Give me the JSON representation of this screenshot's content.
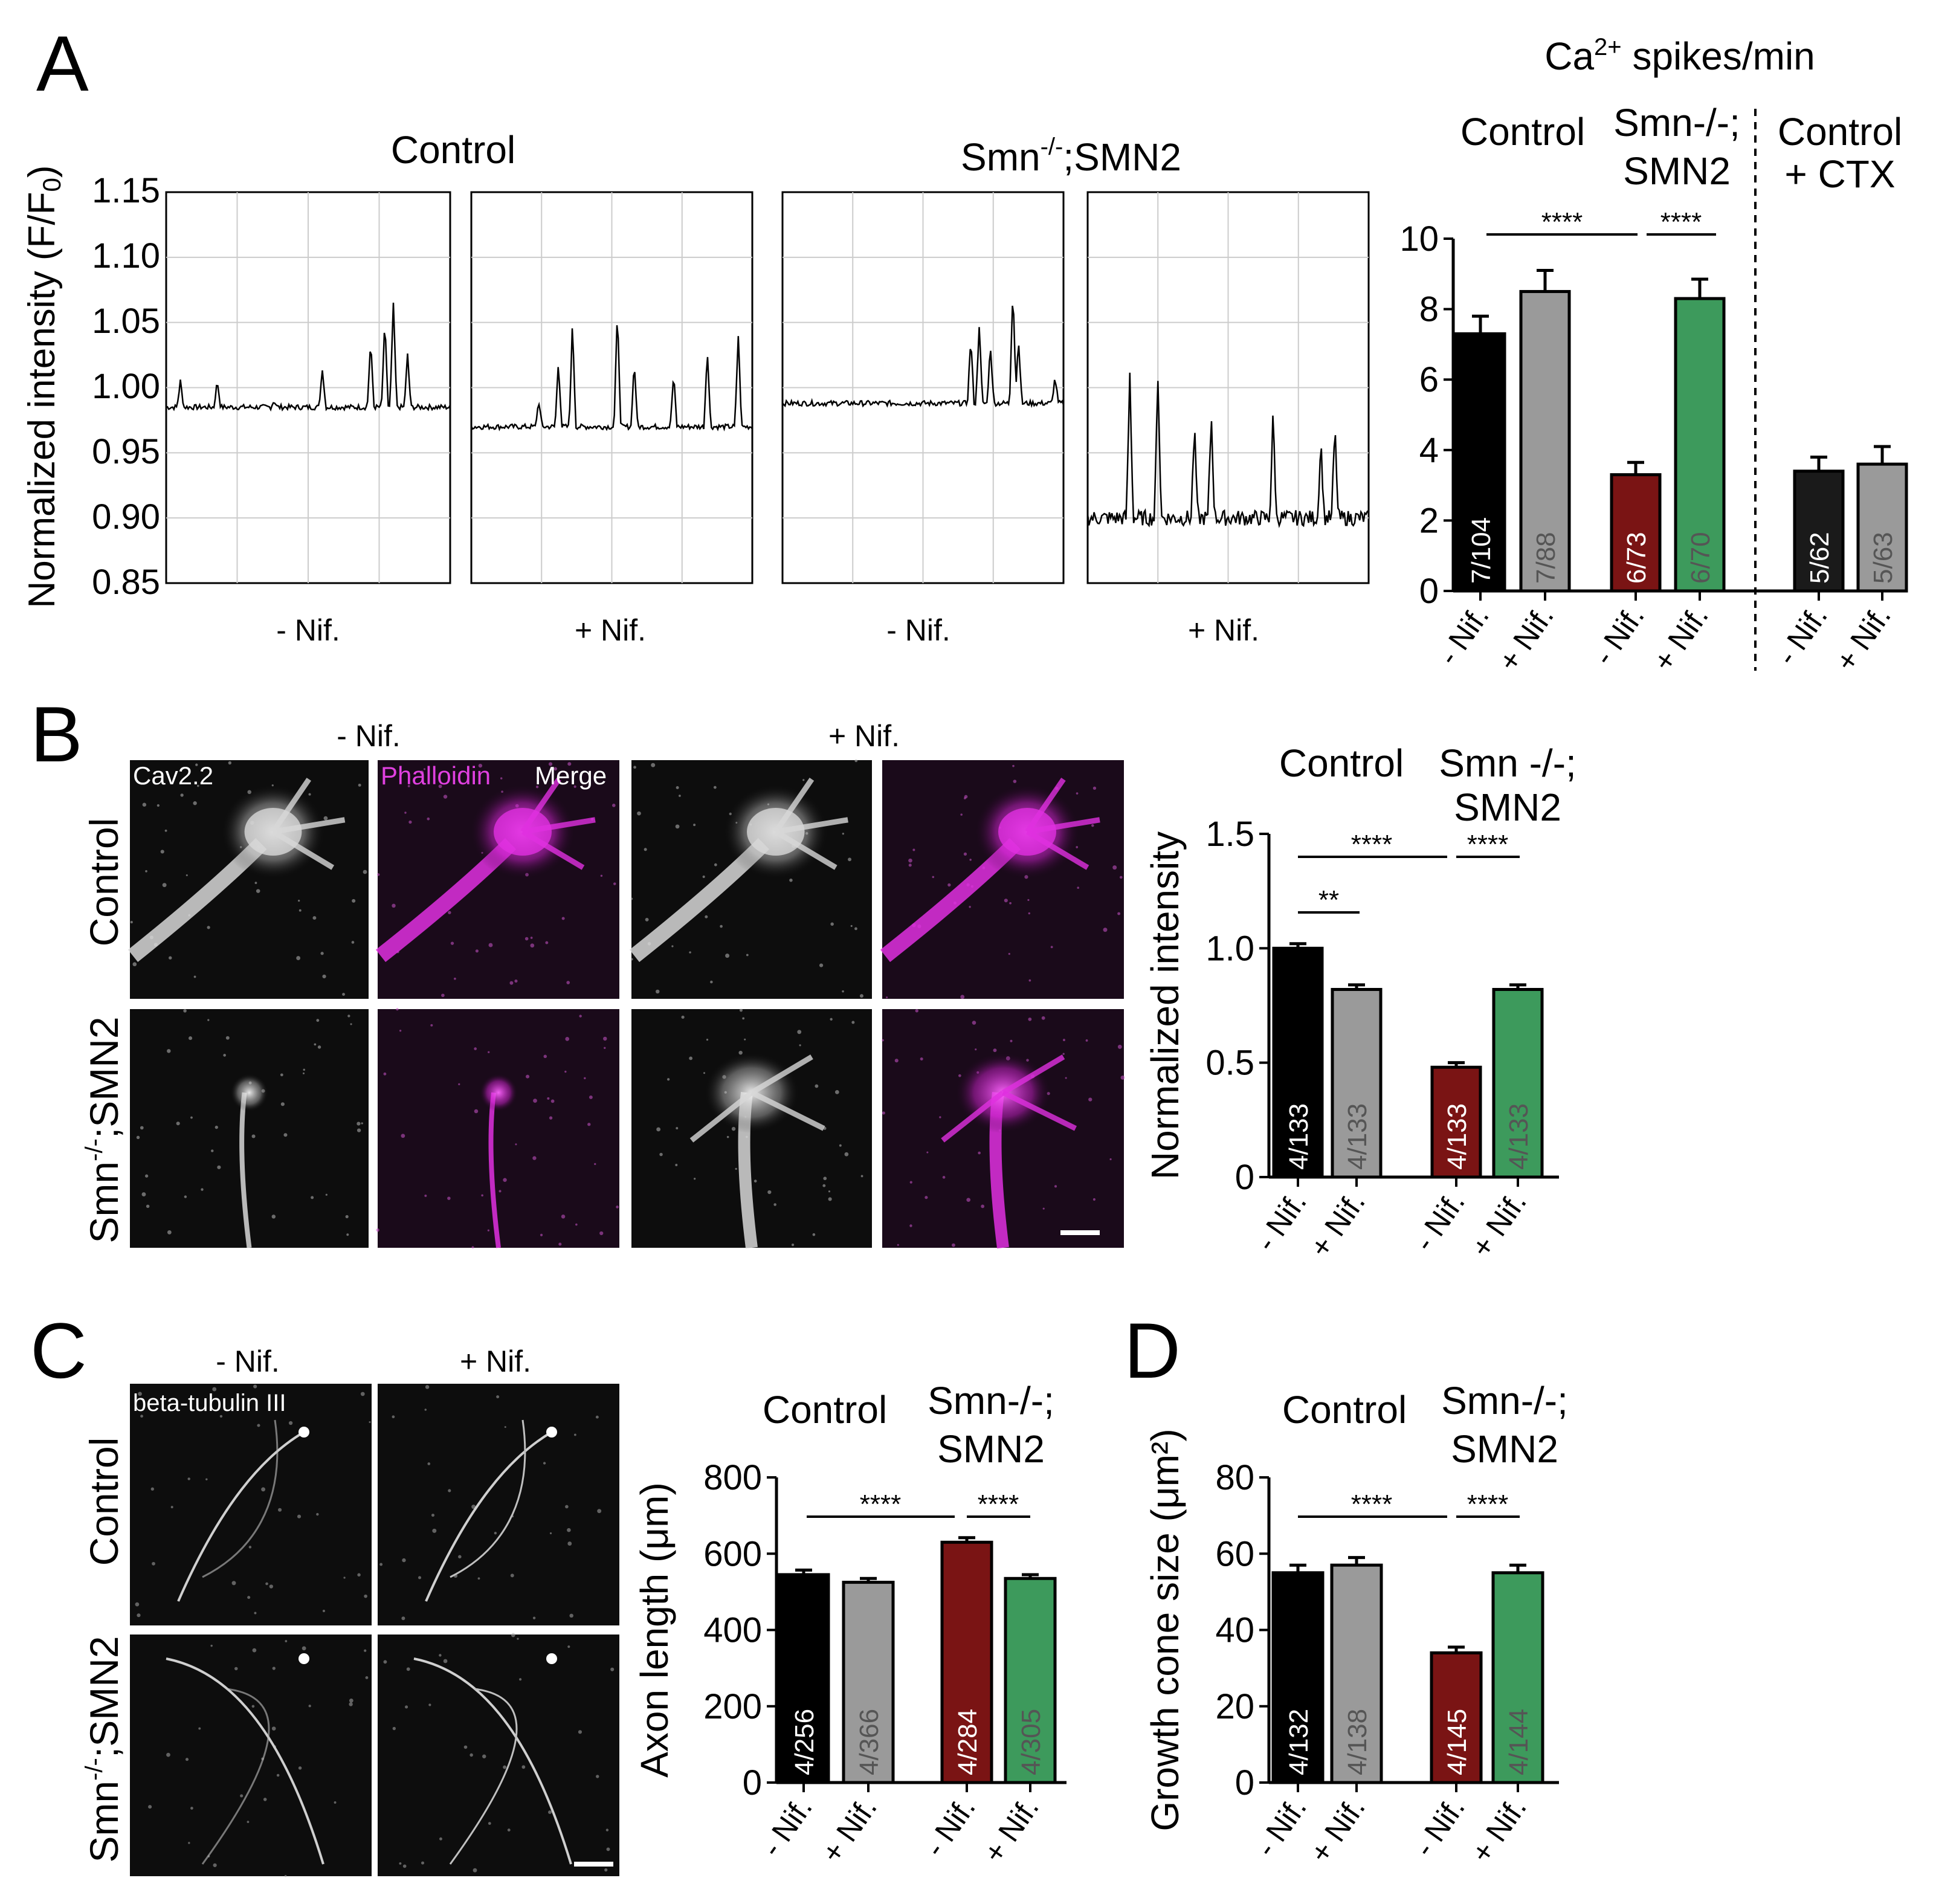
{
  "panels": {
    "A": {
      "letter": "A",
      "trace_titles": [
        "Control",
        "Smn",
        "-/-",
        ";SMN2"
      ],
      "ylabel_main": "Normalized intensity (F/F",
      "ylabel_sub": "0",
      "ylabel_close": ")",
      "yticks": [
        "1.15",
        "1.10",
        "1.05",
        "1.00",
        "0.95",
        "0.90",
        "0.85"
      ],
      "trace_xlabels": [
        "- Nif.",
        "+ Nif.",
        "- Nif.",
        "+ Nif."
      ]
    },
    "A_bar": {
      "title_main": "Ca",
      "title_sup": "2+",
      "title_rest": " spikes/min",
      "groups": [
        "Control",
        "Smn-/-;",
        "SMN2",
        "Control",
        "+ CTX"
      ],
      "sig": [
        "****",
        "****"
      ]
    },
    "B": {
      "letter": "B",
      "col_headers": [
        "- Nif.",
        "+ Nif."
      ],
      "row_labels": [
        "Control",
        "Smn",
        "-/-",
        ";SMN2"
      ],
      "channel_labels": [
        "Cav2.2",
        "Phalloidin",
        "Merge"
      ],
      "groups": [
        "Control",
        "Smn -/-;",
        "SMN2"
      ],
      "sig": [
        "**",
        "****",
        "****"
      ]
    },
    "C": {
      "letter": "C",
      "col_headers": [
        "- Nif.",
        "+ Nif."
      ],
      "row_labels": [
        "Control",
        "Smn",
        "-/-",
        ";SMN2"
      ],
      "channel_label": "beta-tubulin III",
      "groups": [
        "Control",
        "Smn-/-;",
        "SMN2"
      ],
      "sig": [
        "****",
        "****"
      ]
    },
    "D": {
      "letter": "D",
      "groups": [
        "Control",
        "Smn-/-;",
        "SMN2"
      ],
      "sig": [
        "****",
        "****"
      ]
    }
  },
  "chart_data": [
    {
      "type": "bar",
      "panel": "A",
      "title": "Ca2+ spikes/min",
      "categories": [
        "- Nif.",
        "+ Nif.",
        "- Nif.",
        "+ Nif.",
        "- Nif.",
        "+ Nif."
      ],
      "values": [
        7.3,
        8.5,
        3.3,
        8.3,
        3.4,
        3.6
      ],
      "errors": [
        0.5,
        0.6,
        0.35,
        0.55,
        0.4,
        0.5
      ],
      "bar_labels": [
        "7/104",
        "7/88",
        "6/73",
        "6/70",
        "5/62",
        "5/63"
      ],
      "colors": [
        "#000000",
        "#9a9a9a",
        "#7a1414",
        "#3d9a5c",
        "#1a1a1a",
        "#9a9a9a"
      ],
      "yticks": [
        "0",
        "2",
        "4",
        "6",
        "8",
        "10"
      ],
      "ylim": [
        0,
        10
      ],
      "xlabel": "",
      "ylabel": ""
    },
    {
      "type": "bar",
      "panel": "B",
      "categories": [
        "- Nif.",
        "+ Nif.",
        "- Nif.",
        "+ Nif."
      ],
      "values": [
        1.0,
        0.82,
        0.48,
        0.82
      ],
      "errors": [
        0.02,
        0.02,
        0.02,
        0.02
      ],
      "bar_labels": [
        "4/133",
        "4/133",
        "4/133",
        "4/133"
      ],
      "colors": [
        "#000000",
        "#9a9a9a",
        "#7a1414",
        "#3d9a5c"
      ],
      "yticks": [
        "0",
        "0.5",
        "1.0",
        "1.5"
      ],
      "ylim": [
        0,
        1.5
      ],
      "xlabel": "",
      "ylabel": "Normalized intensity"
    },
    {
      "type": "bar",
      "panel": "C",
      "categories": [
        "- Nif.",
        "+ Nif.",
        "- Nif.",
        "+ Nif."
      ],
      "values": [
        545,
        525,
        630,
        535
      ],
      "errors": [
        12,
        10,
        12,
        10
      ],
      "bar_labels": [
        "4/256",
        "4/366",
        "4/284",
        "4/305"
      ],
      "colors": [
        "#000000",
        "#9a9a9a",
        "#7a1414",
        "#3d9a5c"
      ],
      "yticks": [
        "0",
        "200",
        "400",
        "600",
        "800"
      ],
      "ylim": [
        0,
        800
      ],
      "xlabel": "",
      "ylabel": "Axon length (μm)"
    },
    {
      "type": "bar",
      "panel": "D",
      "categories": [
        "- Nif.",
        "+ Nif.",
        "- Nif.",
        "+ Nif."
      ],
      "values": [
        55,
        57,
        34,
        55
      ],
      "errors": [
        2,
        2,
        1.5,
        2
      ],
      "bar_labels": [
        "4/132",
        "4/138",
        "4/145",
        "4/144"
      ],
      "colors": [
        "#000000",
        "#9a9a9a",
        "#7a1414",
        "#3d9a5c"
      ],
      "yticks": [
        "0",
        "20",
        "40",
        "60",
        "80"
      ],
      "ylim": [
        0,
        80
      ],
      "xlabel": "",
      "ylabel": "Growth cone size (μm²)"
    }
  ]
}
